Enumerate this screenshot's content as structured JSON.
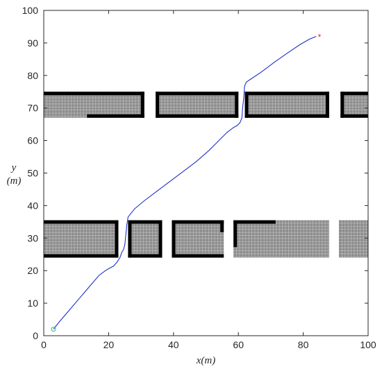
{
  "chart_data": {
    "type": "line",
    "title": "",
    "xlabel": "x(m)",
    "ylabel_top": "y",
    "ylabel_bottom": "(m)",
    "xlim": [
      0,
      100
    ],
    "ylim": [
      0,
      100
    ],
    "xticks": [
      "0",
      "20",
      "40",
      "60",
      "80",
      "100"
    ],
    "yticks": [
      "0",
      "10",
      "20",
      "30",
      "40",
      "50",
      "60",
      "70",
      "80",
      "90",
      "100"
    ],
    "grid": false,
    "colors": {
      "path": "#1f2fc8",
      "start": "#22c06a",
      "goal": "#e0242a",
      "obstacle_fill": "#8c8c8c",
      "obstacle_grid": "#bdbdbd",
      "obstacle_wall": "#000000"
    },
    "start": {
      "x": 3,
      "y": 2
    },
    "goal": {
      "x": 85,
      "y": 92
    },
    "series": [
      {
        "x": [
          3,
          5,
          8,
          11,
          14,
          17,
          19,
          20,
          21.5,
          22.5,
          23.5,
          24,
          24.6,
          25,
          25.3,
          25.6,
          26,
          28,
          31,
          35,
          39,
          43,
          47,
          51,
          54,
          56.5,
          58.5,
          59.6,
          60.5,
          61.1,
          61.3,
          61.6,
          61.8,
          61.9,
          62.1,
          62.5,
          64,
          67,
          71,
          75,
          79,
          82,
          84
        ],
        "y": [
          2,
          4.5,
          8,
          11.5,
          15,
          18.5,
          20,
          20.6,
          21.4,
          22.5,
          24,
          25.5,
          26.5,
          28,
          31,
          34,
          36.5,
          39,
          41.5,
          44.5,
          47.5,
          50.5,
          53.5,
          57,
          60,
          62.5,
          64,
          64.6,
          65.5,
          67,
          70,
          72.5,
          75,
          76.5,
          77.2,
          78,
          79,
          81,
          84,
          86.8,
          89.5,
          91.2,
          92
        ]
      }
    ],
    "obstacles": [
      {
        "x0": 0,
        "x1": 31,
        "y0": 67,
        "y1": 75,
        "walls": "top,right,bottom-partial"
      },
      {
        "x0": 34.5,
        "x1": 60,
        "y0": 67,
        "y1": 75,
        "walls": "top,left,bottom,right"
      },
      {
        "x0": 62,
        "x1": 88,
        "y0": 67,
        "y1": 75,
        "walls": "top,left,bottom,right"
      },
      {
        "x0": 91.5,
        "x1": 100,
        "y0": 67,
        "y1": 75,
        "walls": "top,left,bottom"
      },
      {
        "x0": 0,
        "x1": 23,
        "y0": 24,
        "y1": 35.5,
        "walls": "top,right,bottom"
      },
      {
        "x0": 26,
        "x1": 36.5,
        "y0": 24,
        "y1": 35.5,
        "walls": "top,left,bottom,right"
      },
      {
        "x0": 39.5,
        "x1": 55.5,
        "y0": 24,
        "y1": 35.5,
        "walls": "top,left,bottom,right-partial"
      },
      {
        "x0": 58.5,
        "x1": 88,
        "y0": 24,
        "y1": 35.5,
        "walls": "top-partial,left-partial"
      },
      {
        "x0": 91,
        "x1": 100,
        "y0": 24,
        "y1": 35.5,
        "walls": ""
      }
    ]
  }
}
